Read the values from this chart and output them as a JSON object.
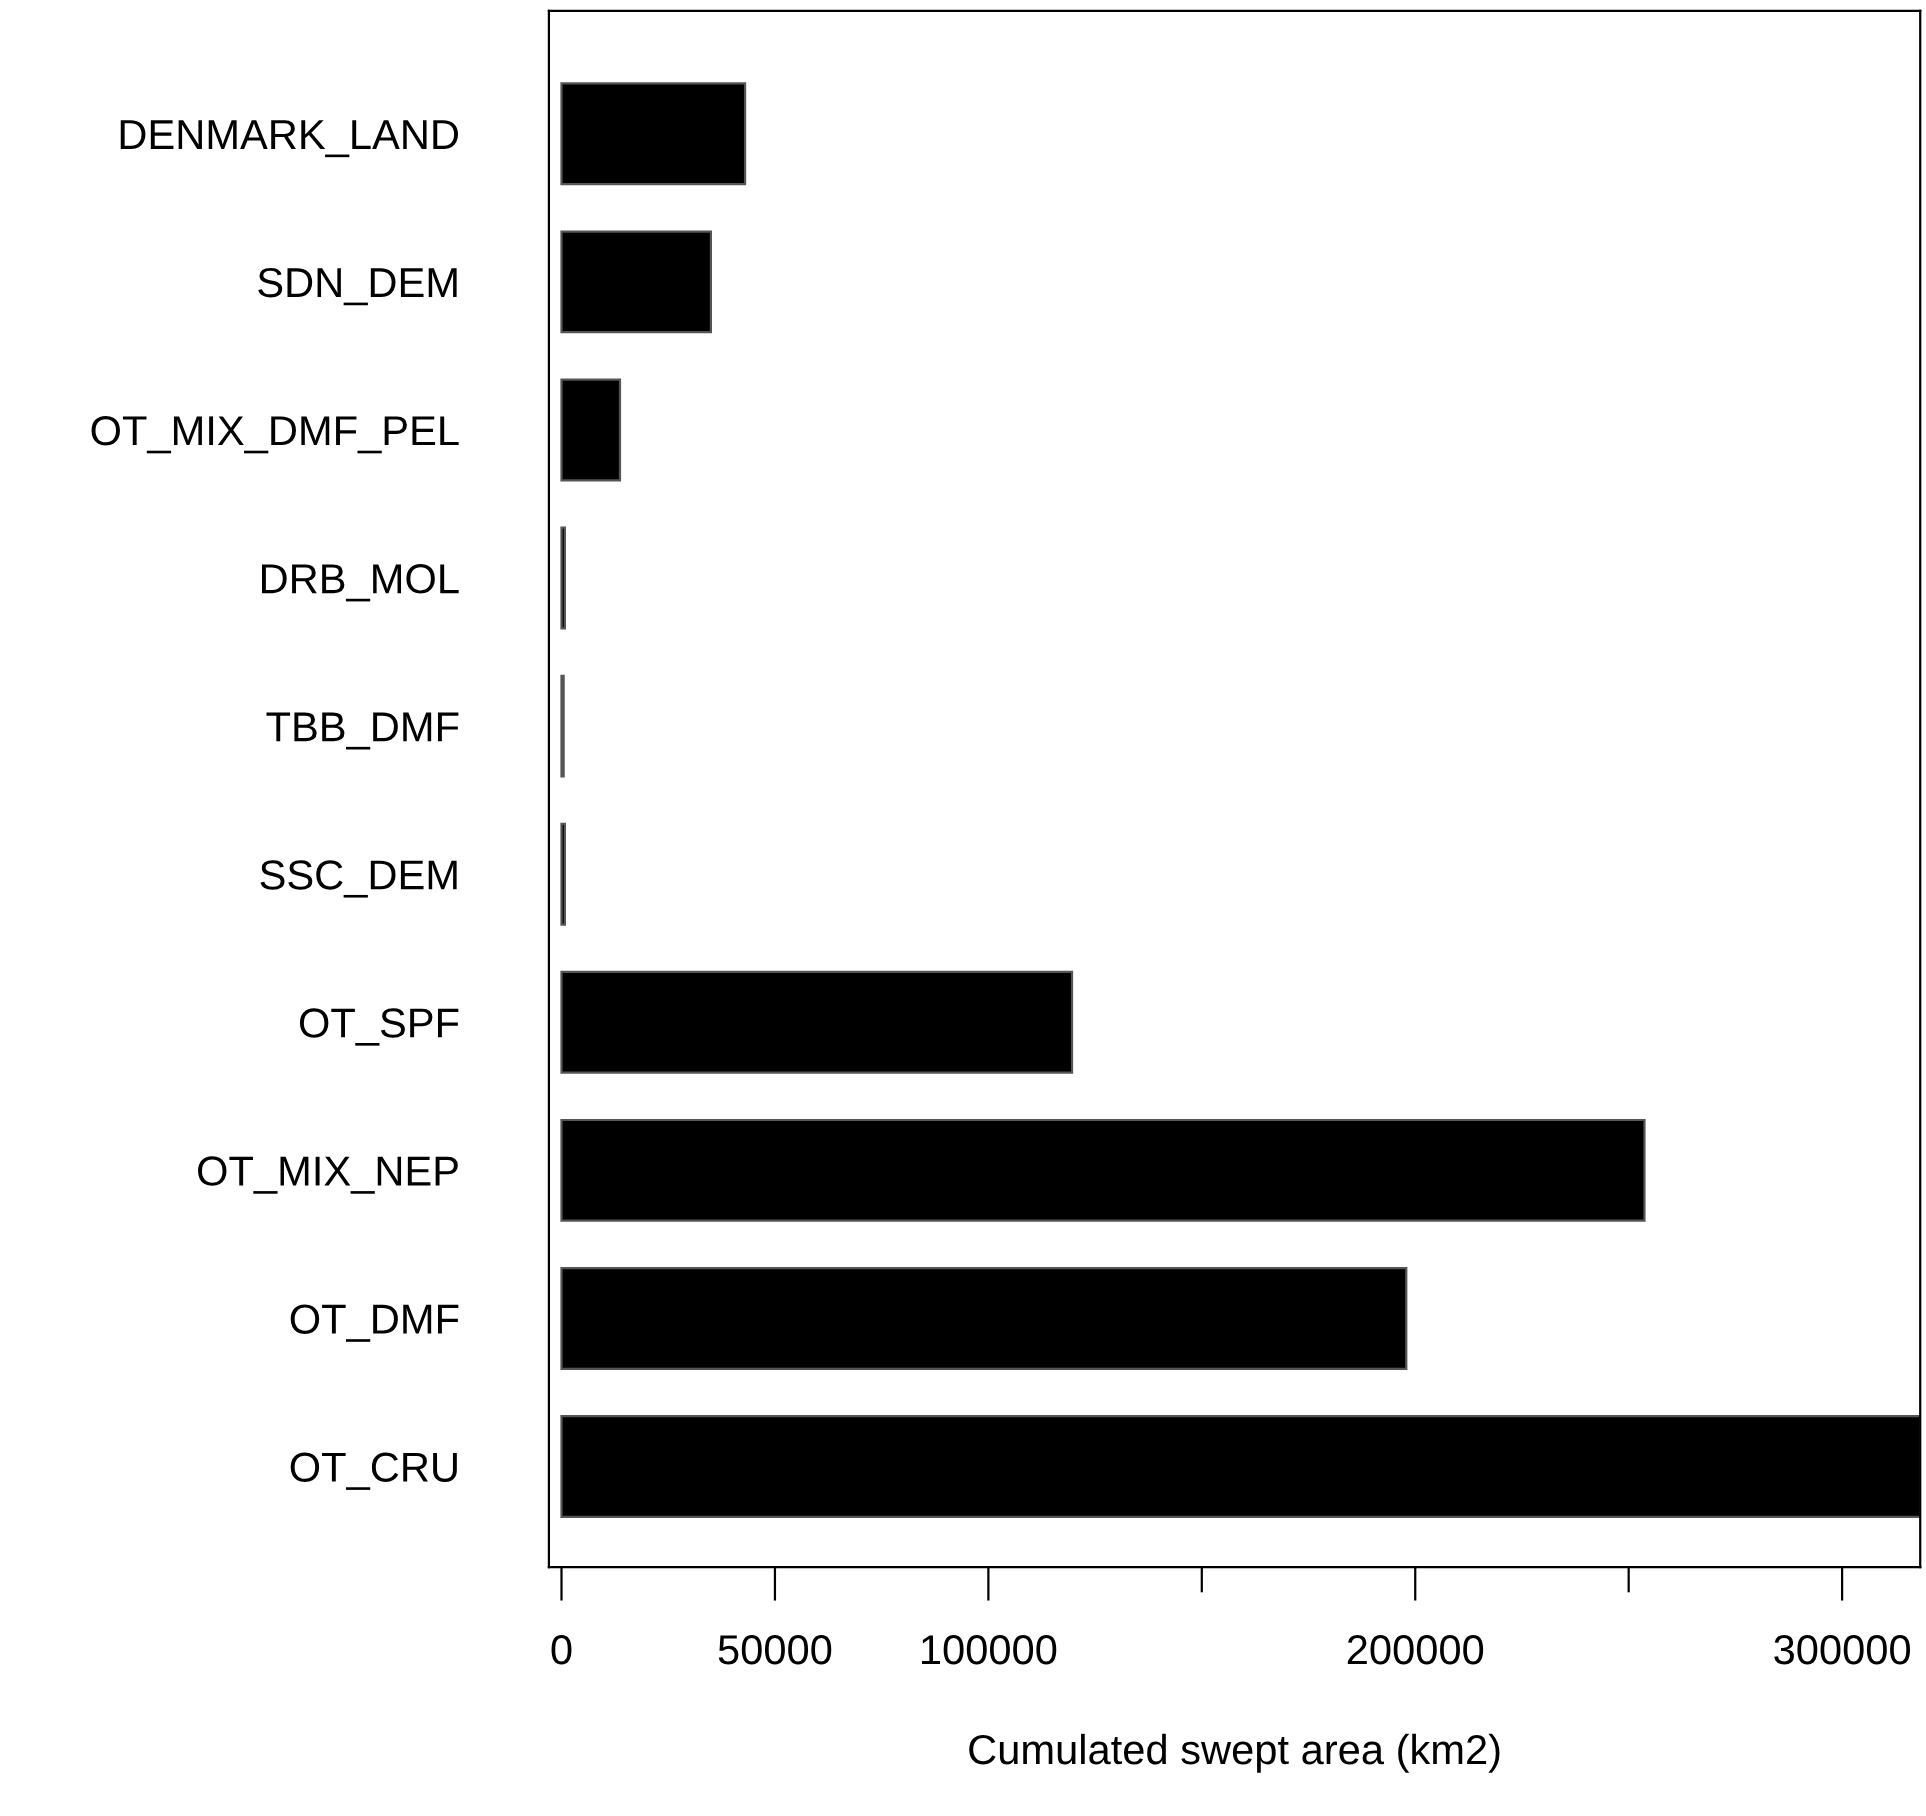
{
  "chart_data": {
    "type": "bar",
    "orientation": "horizontal",
    "xlabel": "Cumulated swept area (km2)",
    "categories": [
      "DENMARK_LAND",
      "SDN_DEM",
      "OT_MIX_DMF_PEL",
      "DRB_MOL",
      "TBB_DMF",
      "SSC_DEM",
      "OT_SPF",
      "OT_MIX_NEP",
      "OT_DMF",
      "OT_CRU"
    ],
    "values": [
      43000,
      35000,
      13700,
      800,
      500,
      800,
      119600,
      253700,
      197900,
      318300
    ],
    "color": "#000000",
    "xlim": [
      -2950,
      318300
    ],
    "xticks": [
      0,
      50000,
      100000,
      {
        "value": 150000,
        "label": null
      },
      200000,
      {
        "value": 250000,
        "label": null
      },
      300000
    ],
    "grid": false,
    "legend": false
  }
}
